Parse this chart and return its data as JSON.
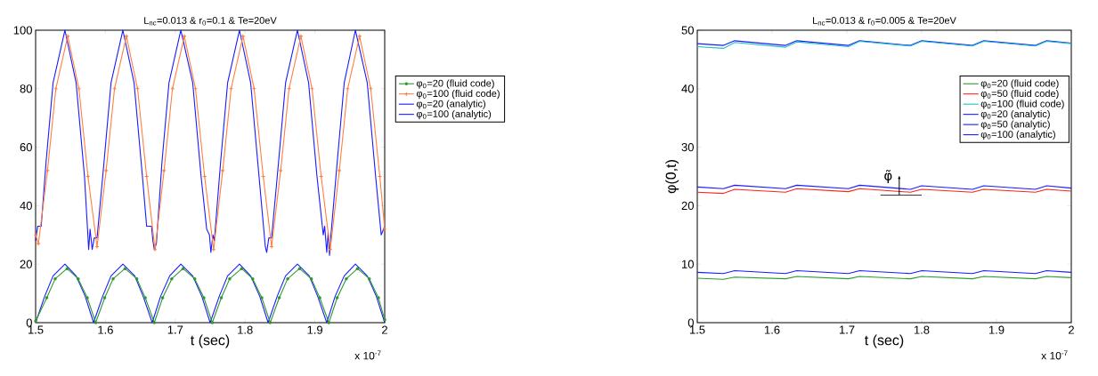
{
  "chart_data": [
    {
      "type": "line",
      "title": "L$_{nc}$=0.013 & r$_{0}$=0.1 & Te=20eV",
      "xlabel": "t (sec)",
      "xlim": [
        1.5,
        2
      ],
      "xticks": [
        1.5,
        1.6,
        1.7,
        1.8,
        1.9,
        2
      ],
      "ylim": [
        0,
        100
      ],
      "yticks": [
        0,
        20,
        40,
        60,
        80,
        100
      ],
      "legend": "right",
      "annotations": [
        "x 10$^{-7}$"
      ],
      "series": [
        {
          "name": "φ$_{0}$=20 (fluid code)",
          "color": "#2e9a2e",
          "marker": "circle",
          "x": [
            1.5,
            1.516,
            1.528,
            1.545,
            1.561,
            1.574,
            1.586,
            1.599,
            1.611,
            1.628,
            1.645,
            1.657,
            1.67,
            1.682,
            1.695,
            1.711,
            1.728,
            1.741,
            1.753,
            1.766,
            1.778,
            1.795,
            1.811,
            1.824,
            1.836,
            1.849,
            1.861,
            1.878,
            1.895,
            1.907,
            1.92,
            1.932,
            1.945,
            1.961,
            1.978,
            1.991,
            2.0
          ],
          "values": [
            0.5,
            8.5,
            15,
            18.5,
            15,
            8.5,
            0,
            8.5,
            15,
            18.5,
            15,
            8.5,
            0,
            8.5,
            15,
            18.5,
            15,
            8.5,
            0,
            8.5,
            15,
            18.5,
            15,
            8.5,
            0,
            8.5,
            15,
            18.5,
            15,
            8.5,
            0,
            8.5,
            15,
            18.5,
            15,
            8.5,
            1
          ]
        },
        {
          "name": "φ$_{0}$=100 (fluid code)",
          "color": "#ff8040",
          "marker": "cross",
          "x": [
            1.5,
            1.504,
            1.517,
            1.529,
            1.546,
            1.562,
            1.575,
            1.588,
            1.601,
            1.613,
            1.63,
            1.646,
            1.659,
            1.671,
            1.684,
            1.696,
            1.713,
            1.729,
            1.742,
            1.755,
            1.768,
            1.78,
            1.797,
            1.813,
            1.826,
            1.838,
            1.851,
            1.863,
            1.88,
            1.896,
            1.909,
            1.922,
            1.935,
            1.947,
            1.964,
            1.98,
            1.993,
            2.0
          ],
          "values": [
            30,
            27,
            52,
            80,
            98,
            80,
            50,
            26,
            52,
            80,
            98,
            80,
            50,
            25,
            52,
            80,
            98,
            80,
            50,
            25,
            52,
            80,
            98,
            80,
            50,
            26,
            52,
            80,
            98,
            80,
            50,
            25,
            52,
            80,
            98,
            80,
            50,
            32
          ]
        },
        {
          "name": "φ$_{0}$=20 (analytic)",
          "color": "#1a1aff",
          "x": [
            1.5,
            1.513,
            1.525,
            1.542,
            1.558,
            1.571,
            1.583,
            1.596,
            1.608,
            1.625,
            1.642,
            1.654,
            1.667,
            1.679,
            1.692,
            1.708,
            1.725,
            1.738,
            1.75,
            1.763,
            1.775,
            1.792,
            1.808,
            1.821,
            1.833,
            1.846,
            1.858,
            1.875,
            1.892,
            1.904,
            1.917,
            1.929,
            1.942,
            1.958,
            1.975,
            1.988,
            2.0
          ],
          "values": [
            0,
            9,
            16,
            20,
            16,
            9,
            0,
            9,
            16,
            20,
            16,
            9,
            0,
            9,
            16,
            20,
            16,
            9,
            0,
            9,
            16,
            20,
            16,
            9,
            0,
            9,
            16,
            20,
            16,
            9,
            0,
            9,
            16,
            20,
            16,
            9,
            0
          ]
        },
        {
          "name": "φ$_{0}$=100 (analytic)",
          "color": "#1a1aff",
          "x": [
            1.5,
            1.503,
            1.508,
            1.515,
            1.525,
            1.542,
            1.558,
            1.57,
            1.576,
            1.578,
            1.581,
            1.584,
            1.588,
            1.598,
            1.608,
            1.625,
            1.641,
            1.653,
            1.659,
            1.666,
            1.668,
            1.67,
            1.673,
            1.681,
            1.691,
            1.708,
            1.725,
            1.737,
            1.745,
            1.749,
            1.751,
            1.754,
            1.756,
            1.765,
            1.775,
            1.792,
            1.808,
            1.82,
            1.829,
            1.831,
            1.834,
            1.838,
            1.848,
            1.858,
            1.875,
            1.891,
            1.903,
            1.912,
            1.914,
            1.917,
            1.919,
            1.921,
            1.923,
            1.932,
            1.942,
            1.958,
            1.975,
            1.987,
            1.995,
            2.0
          ],
          "values": [
            28,
            33,
            33,
            55,
            82,
            100,
            82,
            50,
            25,
            32,
            25,
            29,
            29,
            55,
            82,
            100,
            82,
            50,
            33,
            33,
            28,
            25,
            27,
            55,
            82,
            100,
            82,
            50,
            32,
            30,
            24,
            30,
            28,
            55,
            82,
            100,
            82,
            50,
            26,
            24,
            29,
            29,
            55,
            82,
            100,
            82,
            50,
            30,
            33,
            24,
            31,
            23,
            30,
            55,
            82,
            100,
            82,
            50,
            30,
            33
          ]
        }
      ]
    },
    {
      "type": "line",
      "title": "L$_{nc}$=0.013 & r$_{0}$=0.005 & Te=20eV",
      "xlabel": "t (sec)",
      "ylabel": "φ(0,t)",
      "xlim": [
        1.5,
        2
      ],
      "xticks": [
        1.5,
        1.6,
        1.7,
        1.8,
        1.9,
        2
      ],
      "ylim": [
        0,
        50
      ],
      "yticks": [
        0,
        10,
        20,
        30,
        40,
        50
      ],
      "legend": "top right",
      "annotations": [
        "x 10$^{-7}$",
        {
          "text": "φ̃",
          "x": 1.77,
          "y": 25
        }
      ],
      "x": [
        1.5,
        1.535,
        1.55,
        1.618,
        1.633,
        1.702,
        1.717,
        1.785,
        1.8,
        1.868,
        1.883,
        1.952,
        1.967,
        2.0
      ],
      "series": [
        {
          "name": "φ$_{0}$=20 (fluid code)",
          "color": "#2e9a2e",
          "values": [
            7.6,
            7.4,
            7.8,
            7.5,
            7.9,
            7.5,
            7.9,
            7.5,
            7.9,
            7.5,
            7.9,
            7.5,
            7.9,
            7.7
          ]
        },
        {
          "name": "φ$_{0}$=50 (fluid code)",
          "color": "#ff2020",
          "values": [
            22.3,
            22.1,
            22.8,
            22.3,
            22.9,
            22.4,
            22.9,
            22.3,
            22.8,
            22.3,
            22.8,
            22.3,
            22.8,
            22.5
          ]
        },
        {
          "name": "φ$_{0}$=100 (fluid code)",
          "color": "#20c0c0",
          "values": [
            47.2,
            46.9,
            47.9,
            47.1,
            48.0,
            47.2,
            48.1,
            47.3,
            48.1,
            47.3,
            48.1,
            47.3,
            48.1,
            47.7
          ]
        },
        {
          "name": "φ$_{0}$=20 (analytic)",
          "color": "#1a1aff",
          "values": [
            8.6,
            8.4,
            8.9,
            8.4,
            8.9,
            8.4,
            8.9,
            8.4,
            8.9,
            8.4,
            8.9,
            8.4,
            8.9,
            8.6
          ]
        },
        {
          "name": "φ$_{0}$=50 (analytic)",
          "color": "#1a1aff",
          "values": [
            23.2,
            22.9,
            23.5,
            22.9,
            23.5,
            22.9,
            23.5,
            22.8,
            23.4,
            22.8,
            23.4,
            22.8,
            23.4,
            23.0
          ]
        },
        {
          "name": "φ$_{0}$=100 (analytic)",
          "color": "#1a1aff",
          "values": [
            47.7,
            47.4,
            48.2,
            47.4,
            48.2,
            47.4,
            48.2,
            47.4,
            48.2,
            47.4,
            48.2,
            47.4,
            48.2,
            47.8
          ]
        }
      ]
    }
  ]
}
